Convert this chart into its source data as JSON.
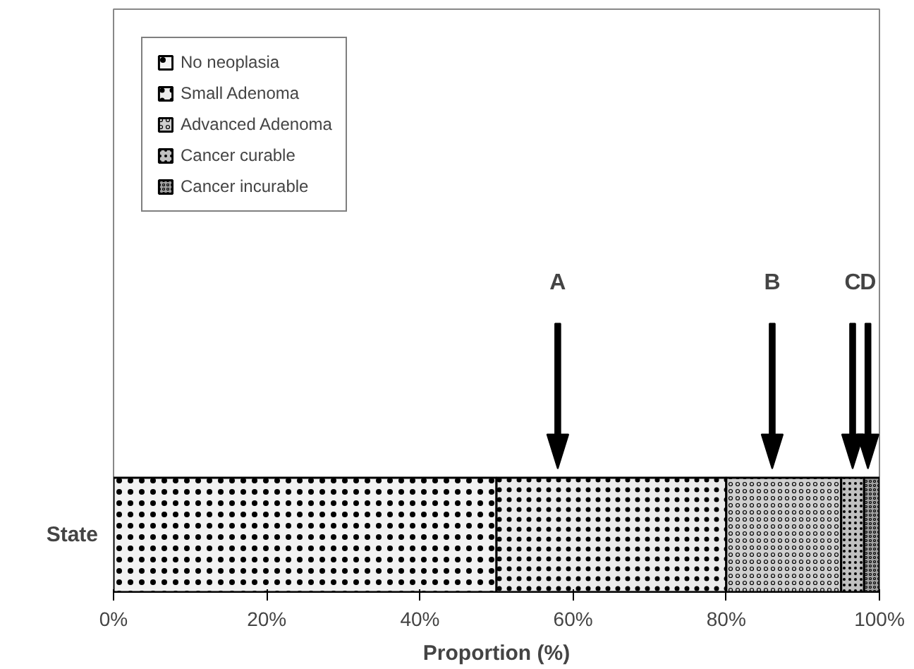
{
  "chart_data": {
    "type": "bar",
    "orientation": "horizontal",
    "stacked": true,
    "categories": [
      "State"
    ],
    "series": [
      {
        "name": "No neoplasia",
        "color": "#f2f2f2",
        "values": [
          50
        ]
      },
      {
        "name": "Small Adenoma",
        "color": "#ebebeb",
        "values": [
          30
        ]
      },
      {
        "name": "Advanced Adenoma",
        "color": "#d0d0d0",
        "values": [
          15
        ]
      },
      {
        "name": "Cancer curable",
        "color": "#c0c0c0",
        "values": [
          3
        ]
      },
      {
        "name": "Cancer incurable",
        "color": "#a0a0a0",
        "values": [
          2
        ]
      }
    ],
    "xlabel": "Proportion (%)",
    "xlim": [
      0,
      100
    ],
    "xticks": [
      {
        "value": 0,
        "label": "0%"
      },
      {
        "value": 20,
        "label": "20%"
      },
      {
        "value": 40,
        "label": "40%"
      },
      {
        "value": 60,
        "label": "60%"
      },
      {
        "value": 80,
        "label": "80%"
      },
      {
        "value": 100,
        "label": "100%"
      }
    ],
    "ref_lines": [
      {
        "axis": "x",
        "value": 58,
        "label": "A"
      },
      {
        "axis": "x",
        "value": 86,
        "label": "B"
      },
      {
        "axis": "x",
        "value": 96.5,
        "label": "C"
      },
      {
        "axis": "x",
        "value": 98.5,
        "label": "D"
      }
    ],
    "legend": "top left",
    "grid": false
  }
}
